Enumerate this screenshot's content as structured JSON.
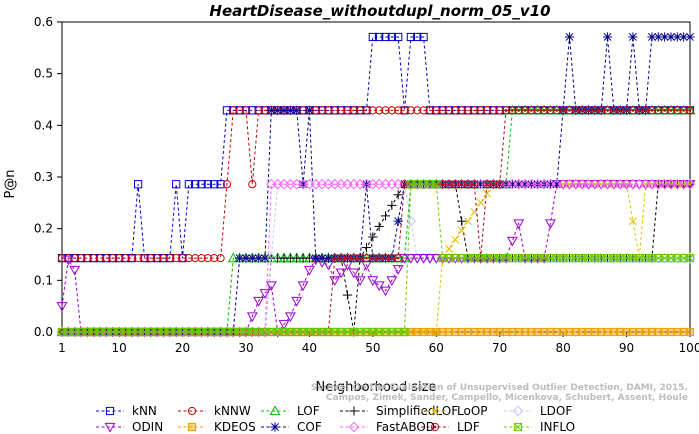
{
  "chart_data": {
    "type": "line",
    "title": "HeartDisease_withoutdupl_norm_05_v10",
    "xlabel": "Neighborhood size",
    "ylabel": "P@n",
    "xlim": [
      1,
      100
    ],
    "ylim": [
      0,
      0.6
    ],
    "x_ticks": [
      1,
      10,
      20,
      30,
      40,
      50,
      60,
      70,
      80,
      90,
      100
    ],
    "y_ticks": [
      0.0,
      0.1,
      0.2,
      0.3,
      0.4,
      0.5,
      0.6
    ],
    "y_tick_labels": [
      "0.0",
      "0.1",
      "0.2",
      "0.3",
      "0.4",
      "0.5",
      "0.6"
    ],
    "credit_lines": [
      "Source: On the Evaluation of Unsupervised Outlier Detection, DAMI, 2015.",
      "Campos, Zimek, Sander, Campello, Micenkova, Schubert, Assent, Houle"
    ],
    "legend_placement": "bottom",
    "grid": false,
    "series": [
      {
        "name": "kNN",
        "color": "#0000cc",
        "marker": "square",
        "segments": [
          [
            1,
            0.143
          ],
          [
            12,
            0.143
          ],
          [
            13,
            0.286
          ],
          [
            14,
            0.143
          ],
          [
            18,
            0.143
          ],
          [
            19,
            0.286
          ],
          [
            20,
            0.143
          ],
          [
            21,
            0.286
          ],
          [
            26,
            0.286
          ],
          [
            27,
            0.429
          ],
          [
            49,
            0.429
          ],
          [
            50,
            0.571
          ],
          [
            54,
            0.571
          ],
          [
            55,
            0.429
          ],
          [
            56,
            0.571
          ],
          [
            58,
            0.571
          ],
          [
            59,
            0.429
          ],
          [
            100,
            0.429
          ]
        ]
      },
      {
        "name": "kNNW",
        "color": "#cc0000",
        "marker": "circle",
        "segments": [
          [
            1,
            0.143
          ],
          [
            26,
            0.143
          ],
          [
            27,
            0.286
          ],
          [
            28,
            0.429
          ],
          [
            30,
            0.429
          ],
          [
            31,
            0.286
          ],
          [
            32,
            0.429
          ],
          [
            100,
            0.429
          ]
        ]
      },
      {
        "name": "LOF",
        "color": "#00bb00",
        "marker": "triangle-up",
        "segments": [
          [
            1,
            0.0
          ],
          [
            27,
            0.0
          ],
          [
            28,
            0.143
          ],
          [
            55,
            0.143
          ],
          [
            56,
            0.286
          ],
          [
            71,
            0.286
          ],
          [
            72,
            0.429
          ],
          [
            100,
            0.429
          ]
        ]
      },
      {
        "name": "SimplifiedLOF",
        "color": "#000000",
        "marker": "plus",
        "segments": [
          [
            1,
            0.0
          ],
          [
            33,
            0.0
          ],
          [
            34,
            0.143
          ],
          [
            45,
            0.143
          ],
          [
            47,
            0.0
          ],
          [
            48,
            0.143
          ],
          [
            55,
            0.286
          ],
          [
            63,
            0.286
          ],
          [
            65,
            0.143
          ],
          [
            94,
            0.143
          ],
          [
            95,
            0.286
          ],
          [
            100,
            0.286
          ]
        ]
      },
      {
        "name": "LoOP",
        "color": "#e0c000",
        "marker": "x",
        "segments": [
          [
            1,
            0.0
          ],
          [
            60,
            0.0
          ],
          [
            61,
            0.143
          ],
          [
            69,
            0.286
          ],
          [
            90,
            0.286
          ],
          [
            92,
            0.143
          ],
          [
            93,
            0.286
          ],
          [
            100,
            0.286
          ]
        ]
      },
      {
        "name": "LDOF",
        "color": "#c8c8ee",
        "marker": "diamond",
        "segments": [
          [
            1,
            0.0
          ],
          [
            33,
            0.0
          ],
          [
            35,
            0.286
          ],
          [
            55,
            0.286
          ],
          [
            57,
            0.143
          ],
          [
            100,
            0.143
          ]
        ]
      },
      {
        "name": "ODIN",
        "color": "#9900cc",
        "marker": "triangle-down",
        "segments": [
          [
            1,
            0.05
          ],
          [
            2,
            0.14
          ],
          [
            3,
            0.12
          ],
          [
            4,
            0.0
          ],
          [
            30,
            0.0
          ],
          [
            31,
            0.03
          ],
          [
            32,
            0.06
          ],
          [
            34,
            0.09
          ],
          [
            35,
            0.0
          ],
          [
            37,
            0.03
          ],
          [
            38,
            0.06
          ],
          [
            39,
            0.09
          ],
          [
            40,
            0.12
          ],
          [
            41,
            0.14
          ],
          [
            43,
            0.13
          ],
          [
            44,
            0.1
          ],
          [
            46,
            0.13
          ],
          [
            48,
            0.1
          ],
          [
            49,
            0.13
          ],
          [
            50,
            0.1
          ],
          [
            52,
            0.08
          ],
          [
            53,
            0.1
          ],
          [
            55,
            0.143
          ],
          [
            71,
            0.143
          ],
          [
            73,
            0.21
          ],
          [
            74,
            0.143
          ],
          [
            77,
            0.143
          ],
          [
            78,
            0.21
          ],
          [
            79,
            0.286
          ],
          [
            92,
            0.286
          ],
          [
            93,
            0.286
          ],
          [
            100,
            0.286
          ]
        ]
      },
      {
        "name": "KDEOS",
        "color": "#eea000",
        "marker": "square-filled",
        "segments": [
          [
            1,
            0.0
          ],
          [
            100,
            0.0
          ]
        ]
      },
      {
        "name": "COF",
        "color": "#000088",
        "marker": "asterisk",
        "segments": [
          [
            1,
            0.0
          ],
          [
            28,
            0.0
          ],
          [
            29,
            0.143
          ],
          [
            33,
            0.143
          ],
          [
            34,
            0.429
          ],
          [
            38,
            0.429
          ],
          [
            39,
            0.286
          ],
          [
            40,
            0.429
          ],
          [
            41,
            0.143
          ],
          [
            48,
            0.143
          ],
          [
            49,
            0.286
          ],
          [
            50,
            0.143
          ],
          [
            53,
            0.143
          ],
          [
            55,
            0.286
          ],
          [
            79,
            0.286
          ],
          [
            80,
            0.429
          ],
          [
            81,
            0.571
          ],
          [
            82,
            0.429
          ],
          [
            86,
            0.429
          ],
          [
            87,
            0.571
          ],
          [
            88,
            0.429
          ],
          [
            90,
            0.429
          ],
          [
            91,
            0.571
          ],
          [
            92,
            0.429
          ],
          [
            93,
            0.429
          ],
          [
            94,
            0.571
          ],
          [
            100,
            0.571
          ]
        ]
      },
      {
        "name": "FastABOD",
        "color": "#ff66ff",
        "marker": "diamond",
        "segments": [
          [
            1,
            0.0
          ],
          [
            33,
            0.0
          ],
          [
            34,
            0.286
          ],
          [
            100,
            0.286
          ]
        ]
      },
      {
        "name": "LDF",
        "color": "#aa1122",
        "marker": "circle-filled",
        "segments": [
          [
            1,
            0.0
          ],
          [
            43,
            0.0
          ],
          [
            44,
            0.143
          ],
          [
            54,
            0.143
          ],
          [
            55,
            0.286
          ],
          [
            66,
            0.286
          ],
          [
            67,
            0.143
          ],
          [
            68,
            0.286
          ],
          [
            70,
            0.286
          ],
          [
            71,
            0.429
          ],
          [
            100,
            0.429
          ]
        ]
      },
      {
        "name": "INFLO",
        "color": "#66cc00",
        "marker": "boxed-x",
        "segments": [
          [
            1,
            0.0
          ],
          [
            55,
            0.0
          ],
          [
            56,
            0.286
          ],
          [
            60,
            0.286
          ],
          [
            61,
            0.143
          ],
          [
            100,
            0.143
          ]
        ]
      }
    ]
  }
}
